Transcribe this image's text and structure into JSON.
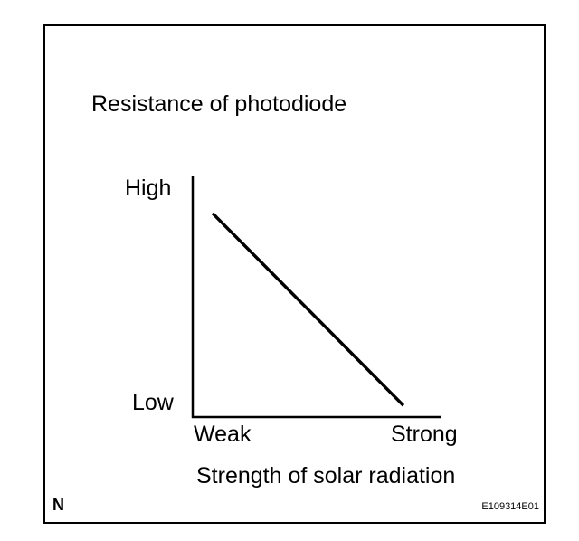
{
  "chart_data": {
    "type": "line",
    "title": "Resistance of photodiode",
    "xlabel": "Strength of solar radiation",
    "ylabel": "",
    "x_ticks": [
      "Weak",
      "Strong"
    ],
    "y_ticks": [
      "High",
      "Low"
    ],
    "xlim": [
      0,
      1
    ],
    "ylim": [
      0,
      1
    ],
    "series": [
      {
        "x": [
          0.08,
          0.85
        ],
        "y": [
          0.88,
          0.05
        ]
      }
    ],
    "grid": false
  },
  "figure": {
    "corner_label": "N",
    "code": "E109314E01"
  }
}
